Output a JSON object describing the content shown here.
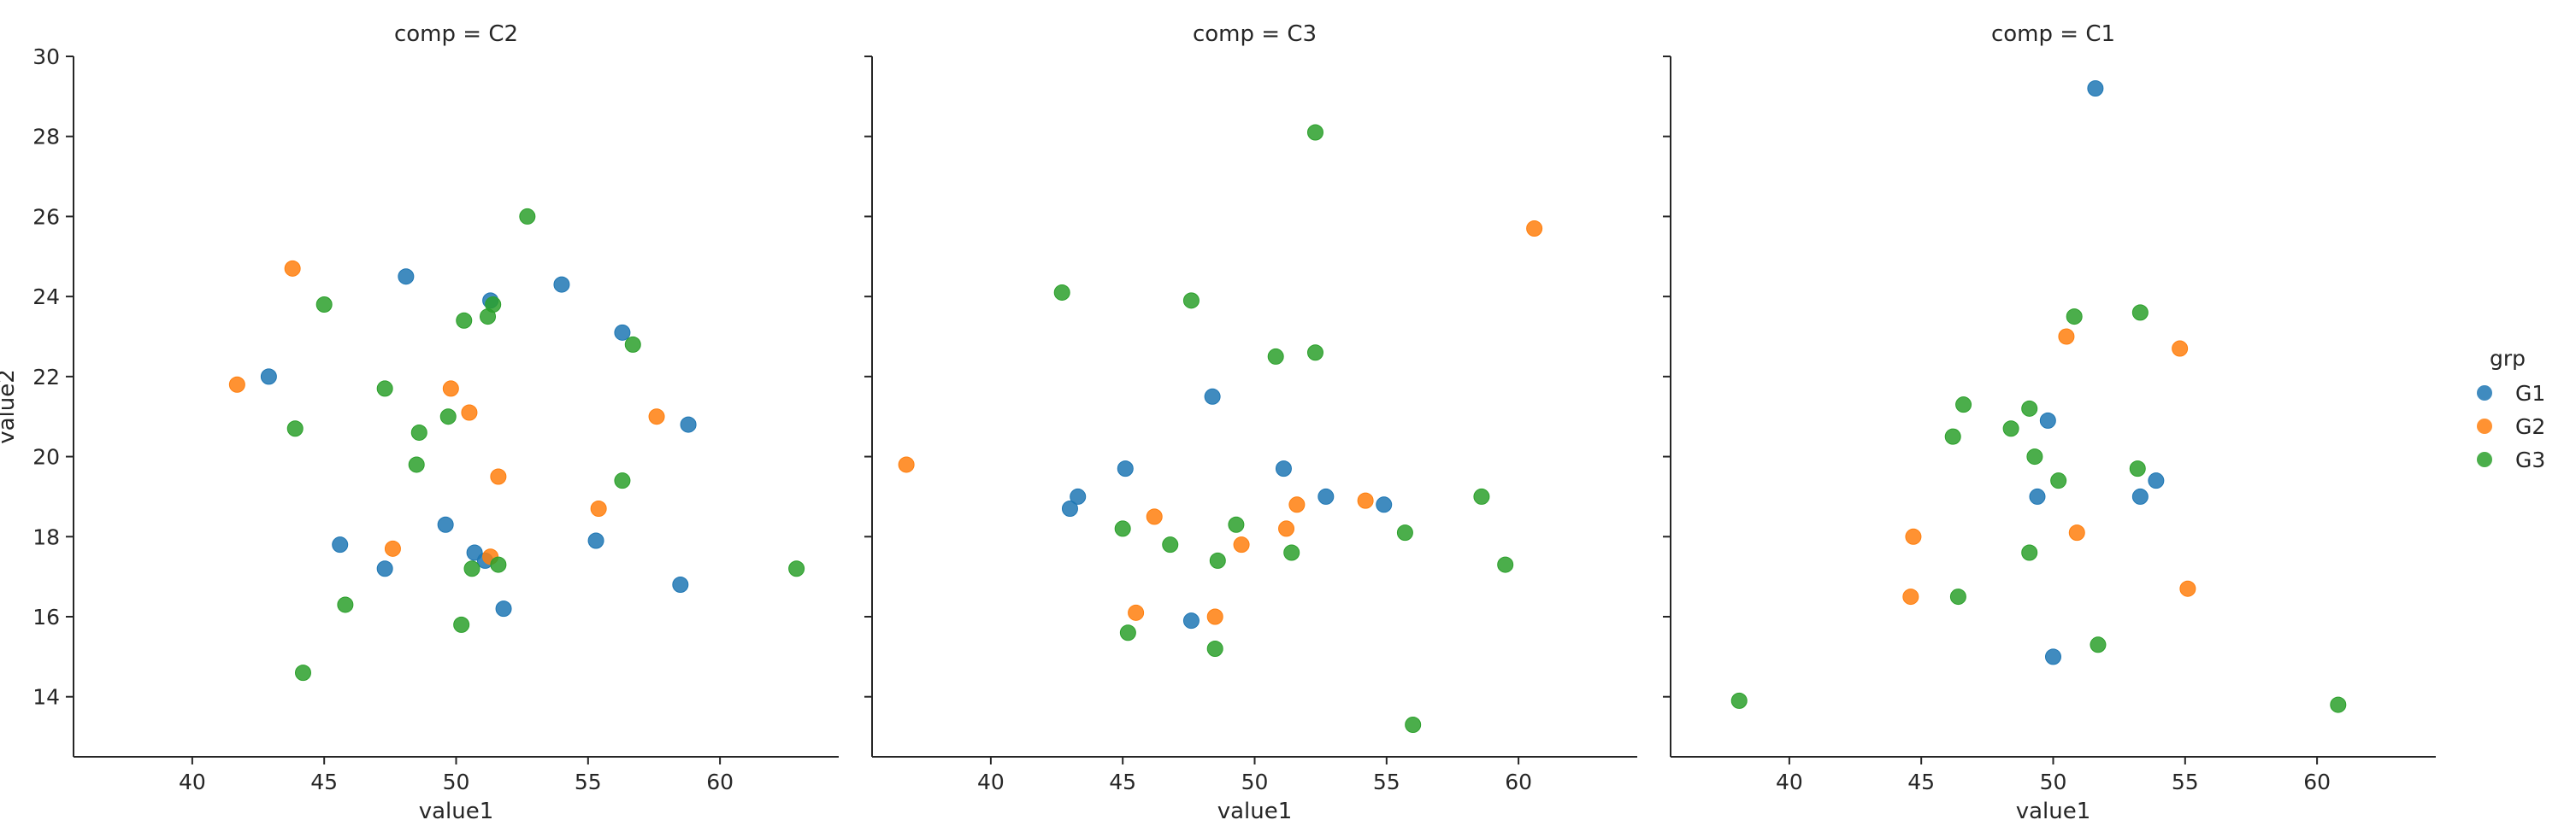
{
  "chart_data": {
    "type": "scatter",
    "ylabel": "value2",
    "xlabel": "value1",
    "xlim": [
      35.5,
      64.5
    ],
    "ylim": [
      12.5,
      30
    ],
    "x_ticks": [
      40,
      45,
      50,
      55,
      60
    ],
    "y_ticks": [
      14,
      16,
      18,
      20,
      22,
      24,
      26,
      28,
      30
    ],
    "legend": {
      "title": "grp",
      "placement": "right",
      "entries": [
        {
          "name": "G1",
          "color": "#1f77b4"
        },
        {
          "name": "G2",
          "color": "#ff7f0e"
        },
        {
          "name": "G3",
          "color": "#2ca02c"
        }
      ]
    },
    "panels": [
      {
        "title": "comp = C2",
        "series": [
          {
            "name": "G1",
            "points": [
              [
                42.9,
                22.0
              ],
              [
                48.1,
                24.5
              ],
              [
                51.3,
                23.9
              ],
              [
                54.0,
                24.3
              ],
              [
                56.3,
                23.1
              ],
              [
                58.8,
                20.8
              ],
              [
                45.6,
                17.8
              ],
              [
                49.6,
                18.3
              ],
              [
                47.3,
                17.2
              ],
              [
                50.7,
                17.6
              ],
              [
                51.1,
                17.4
              ],
              [
                51.8,
                16.2
              ],
              [
                55.3,
                17.9
              ],
              [
                58.5,
                16.8
              ]
            ]
          },
          {
            "name": "G2",
            "points": [
              [
                41.7,
                21.8
              ],
              [
                43.8,
                24.7
              ],
              [
                49.8,
                21.7
              ],
              [
                50.5,
                21.1
              ],
              [
                51.6,
                19.5
              ],
              [
                47.6,
                17.7
              ],
              [
                51.3,
                17.5
              ],
              [
                55.4,
                18.7
              ],
              [
                57.6,
                21.0
              ]
            ]
          },
          {
            "name": "G3",
            "points": [
              [
                45.0,
                23.8
              ],
              [
                52.7,
                26.0
              ],
              [
                50.3,
                23.4
              ],
              [
                51.2,
                23.5
              ],
              [
                51.4,
                23.8
              ],
              [
                56.7,
                22.8
              ],
              [
                47.3,
                21.7
              ],
              [
                43.9,
                20.7
              ],
              [
                48.6,
                20.6
              ],
              [
                49.7,
                21.0
              ],
              [
                48.5,
                19.8
              ],
              [
                56.3,
                19.4
              ],
              [
                50.6,
                17.2
              ],
              [
                51.6,
                17.3
              ],
              [
                45.8,
                16.3
              ],
              [
                50.2,
                15.8
              ],
              [
                44.2,
                14.6
              ],
              [
                62.9,
                17.2
              ]
            ]
          }
        ]
      },
      {
        "title": "comp = C3",
        "series": [
          {
            "name": "G1",
            "points": [
              [
                48.4,
                21.5
              ],
              [
                45.1,
                19.7
              ],
              [
                43.3,
                19.0
              ],
              [
                43.0,
                18.7
              ],
              [
                51.1,
                19.7
              ],
              [
                52.7,
                19.0
              ],
              [
                54.9,
                18.8
              ],
              [
                47.6,
                15.9
              ]
            ]
          },
          {
            "name": "G2",
            "points": [
              [
                36.8,
                19.8
              ],
              [
                60.6,
                25.7
              ],
              [
                46.2,
                18.5
              ],
              [
                49.5,
                17.8
              ],
              [
                51.2,
                18.2
              ],
              [
                51.6,
                18.8
              ],
              [
                54.2,
                18.9
              ],
              [
                45.5,
                16.1
              ],
              [
                48.5,
                16.0
              ]
            ]
          },
          {
            "name": "G3",
            "points": [
              [
                52.3,
                28.1
              ],
              [
                42.7,
                24.1
              ],
              [
                47.6,
                23.9
              ],
              [
                50.8,
                22.5
              ],
              [
                52.3,
                22.6
              ],
              [
                45.0,
                18.2
              ],
              [
                46.8,
                17.8
              ],
              [
                49.3,
                18.3
              ],
              [
                48.6,
                17.4
              ],
              [
                51.4,
                17.6
              ],
              [
                55.7,
                18.1
              ],
              [
                58.6,
                19.0
              ],
              [
                59.5,
                17.3
              ],
              [
                45.2,
                15.6
              ],
              [
                48.5,
                15.2
              ],
              [
                56.0,
                13.3
              ]
            ]
          }
        ]
      },
      {
        "title": "comp = C1",
        "series": [
          {
            "name": "G1",
            "points": [
              [
                51.6,
                29.2
              ],
              [
                49.8,
                20.9
              ],
              [
                49.4,
                19.0
              ],
              [
                53.9,
                19.4
              ],
              [
                53.3,
                19.0
              ],
              [
                50.0,
                15.0
              ]
            ]
          },
          {
            "name": "G2",
            "points": [
              [
                50.5,
                23.0
              ],
              [
                54.8,
                22.7
              ],
              [
                44.7,
                18.0
              ],
              [
                50.9,
                18.1
              ],
              [
                44.6,
                16.5
              ],
              [
                55.1,
                16.7
              ]
            ]
          },
          {
            "name": "G3",
            "points": [
              [
                50.8,
                23.5
              ],
              [
                53.3,
                23.6
              ],
              [
                46.6,
                21.3
              ],
              [
                46.2,
                20.5
              ],
              [
                48.4,
                20.7
              ],
              [
                49.1,
                21.2
              ],
              [
                49.3,
                20.0
              ],
              [
                50.2,
                19.4
              ],
              [
                53.2,
                19.7
              ],
              [
                49.1,
                17.6
              ],
              [
                46.4,
                16.5
              ],
              [
                51.7,
                15.3
              ],
              [
                38.1,
                13.9
              ],
              [
                60.8,
                13.8
              ]
            ]
          }
        ]
      }
    ]
  }
}
